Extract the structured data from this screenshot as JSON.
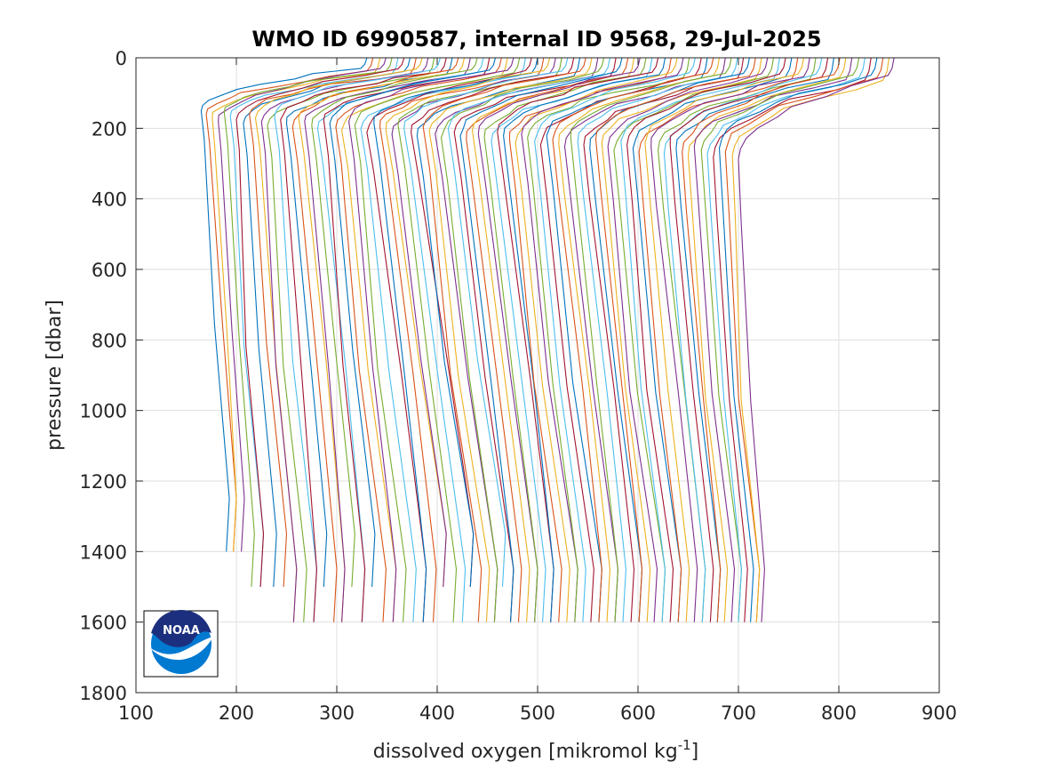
{
  "chart_data": {
    "type": "line",
    "title": "WMO ID 6990587, internal ID 9568, 29-Jul-2025",
    "xlabel_main": "dissolved oxygen [mikromol kg",
    "xlabel_sup": "-1",
    "xlabel_end": "]",
    "ylabel": "pressure [dbar]",
    "xlim": [
      100,
      900
    ],
    "ylim": [
      0,
      1800
    ],
    "y_reversed": true,
    "grid": true,
    "xticks": [
      100,
      200,
      300,
      400,
      500,
      600,
      700,
      800,
      900
    ],
    "yticks": [
      0,
      200,
      400,
      600,
      800,
      1000,
      1200,
      1400,
      1600,
      1800
    ],
    "colors": [
      "#0072bd",
      "#d95319",
      "#edb120",
      "#7e2f8e",
      "#77ac30",
      "#4dbeee",
      "#a2142f"
    ],
    "x_surface": [
      330,
      336,
      343,
      349,
      355,
      361,
      367,
      373,
      379,
      385,
      391,
      397,
      403,
      409,
      415,
      421,
      427,
      433,
      440,
      446,
      452,
      458,
      464,
      470,
      476,
      482,
      488,
      494,
      500,
      506,
      512,
      518,
      524,
      530,
      536,
      542,
      548,
      554,
      560,
      566,
      572,
      578,
      584,
      590,
      596,
      602,
      608,
      614,
      620,
      627,
      633,
      639,
      645,
      651,
      657,
      663,
      669,
      675,
      681,
      687,
      693,
      699,
      705,
      711,
      717,
      723,
      729,
      735,
      741,
      747,
      753,
      759,
      765,
      771,
      777,
      783,
      789,
      795,
      801,
      807,
      813,
      820,
      826,
      832,
      838,
      844,
      850,
      855
    ],
    "x_deep": [
      190,
      197,
      205,
      215,
      224,
      237,
      247,
      257,
      267,
      277,
      287,
      297,
      305,
      315,
      325,
      335,
      346,
      356,
      366,
      376,
      386,
      396,
      406,
      416,
      425,
      433,
      441,
      449,
      457,
      465,
      473,
      481,
      489,
      497,
      505,
      513,
      521,
      529,
      537,
      545,
      553,
      561,
      569,
      577,
      585,
      593,
      601,
      609,
      616,
      624,
      632,
      640,
      648,
      656,
      664,
      672,
      679,
      686,
      693,
      700,
      706,
      712,
      718,
      723
    ],
    "x_min": [
      165,
      170,
      176,
      182,
      188,
      194,
      200,
      207,
      213,
      219,
      225,
      231,
      238,
      244,
      250,
      256,
      262,
      268,
      275,
      281,
      287,
      293,
      299,
      305,
      312,
      318,
      324,
      330,
      337,
      343,
      349,
      355,
      361,
      367,
      374,
      380,
      386,
      392,
      398,
      404,
      411,
      417,
      423,
      429,
      435,
      441,
      447,
      454,
      460,
      466,
      472,
      478,
      484,
      490,
      497,
      503,
      509,
      515,
      521,
      527,
      533,
      540,
      546,
      552,
      558,
      564,
      570,
      576,
      583,
      589,
      595,
      601,
      607,
      613,
      620,
      626,
      632,
      638,
      644,
      650,
      656,
      663,
      669,
      675,
      681,
      687,
      694,
      700
    ],
    "p_deep": [
      1400,
      1400,
      1400,
      1500,
      1500,
      1500,
      1500,
      1600,
      1600,
      1600,
      1500,
      1600,
      1600,
      1500,
      1600,
      1500,
      1600,
      1600,
      1600,
      1600,
      1600,
      1600,
      1500,
      1600,
      1600,
      1500,
      1600,
      1600,
      1600,
      1500,
      1600,
      1600,
      1600,
      1600,
      1600,
      1600,
      1600,
      1600,
      1600,
      1600,
      1600,
      1600,
      1600,
      1600,
      1600,
      1600,
      1600,
      1600,
      1600,
      1600,
      1600,
      1600,
      1600,
      1600,
      1600,
      1600,
      1600,
      1600,
      1600,
      1600,
      1600,
      1600,
      1600,
      1600
    ]
  }
}
